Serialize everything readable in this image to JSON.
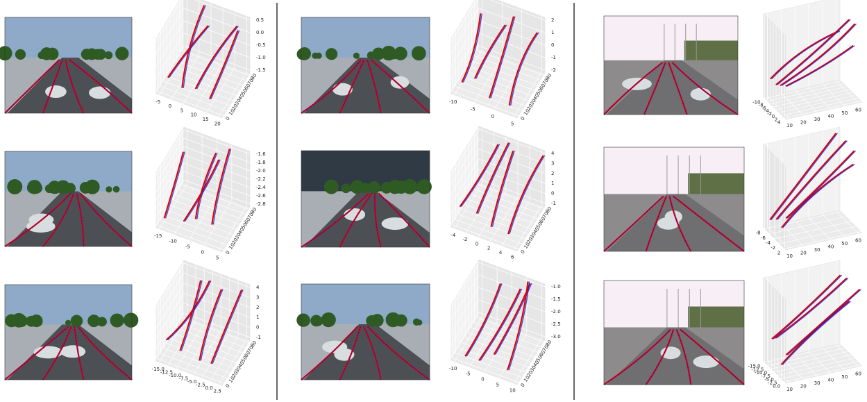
{
  "columns": [
    {
      "panels": [
        {
          "z_ticks": [
            "0.5",
            "0.0",
            "-0.5",
            "-1.0",
            "-1.5"
          ],
          "x_ticks": [
            "-5",
            "0",
            "5",
            "10",
            "15",
            "20"
          ],
          "y_ticks": [
            "0",
            "10",
            "20",
            "30",
            "40",
            "50",
            "60",
            "70",
            "80"
          ]
        },
        {
          "z_ticks": [
            "-1.6",
            "-1.8",
            "-2.0",
            "-2.2",
            "-2.4",
            "-2.6",
            "-2.8"
          ],
          "x_ticks": [
            "-15",
            "-10",
            "-5",
            "0",
            "5"
          ],
          "y_ticks": [
            "0",
            "10",
            "20",
            "30",
            "40",
            "50",
            "60",
            "70",
            "80"
          ]
        },
        {
          "z_ticks": [
            "4",
            "3",
            "2",
            "1",
            "0",
            "-1"
          ],
          "x_ticks": [
            "-15.0",
            "-12.5",
            "-10.0",
            "-7.5",
            "-5.0",
            "-2.5",
            "0.0",
            "2.5"
          ],
          "y_ticks": [
            "0",
            "10",
            "20",
            "30",
            "40",
            "50",
            "60",
            "70",
            "80"
          ]
        }
      ]
    },
    {
      "panels": [
        {
          "z_ticks": [
            "2",
            "1",
            "0",
            "-1",
            "-2"
          ],
          "x_ticks": [
            "-10",
            "-5",
            "0",
            "5"
          ],
          "y_ticks": [
            "0",
            "10",
            "20",
            "30",
            "40",
            "50",
            "60",
            "70",
            "80"
          ]
        },
        {
          "z_ticks": [
            "4",
            "3",
            "2",
            "1",
            "0",
            "-1"
          ],
          "x_ticks": [
            "-4",
            "-2",
            "0",
            "2",
            "4",
            "6"
          ],
          "y_ticks": [
            "0",
            "10",
            "20",
            "30",
            "40",
            "50",
            "60",
            "70",
            "80"
          ]
        },
        {
          "z_ticks": [
            "-1.0",
            "-1.5",
            "-2.0",
            "-2.5",
            "-3.0"
          ],
          "x_ticks": [
            "-10",
            "-5",
            "0",
            "5",
            "10"
          ],
          "y_ticks": [
            "0",
            "10",
            "20",
            "30",
            "40",
            "50",
            "60",
            "70",
            "80"
          ]
        }
      ]
    },
    {
      "panels": [
        {
          "x_ticks": [
            "-10",
            "-8",
            "-6",
            "-4",
            "-2",
            "0",
            "2",
            "4"
          ],
          "y_ticks": [
            "10",
            "20",
            "30",
            "40",
            "50",
            "60"
          ]
        },
        {
          "x_ticks": [
            "-8",
            "-6",
            "-4",
            "-2",
            "2"
          ],
          "y_ticks": [
            "10",
            "20",
            "30",
            "40",
            "50",
            "60"
          ]
        },
        {
          "x_ticks": [
            "-15.0",
            "-12.5",
            "-10.0",
            "-7.5",
            "-5.0",
            "-2.5",
            "0.0"
          ],
          "y_ticks": [
            "10",
            "20",
            "30",
            "40",
            "50",
            "60"
          ]
        }
      ]
    }
  ]
}
